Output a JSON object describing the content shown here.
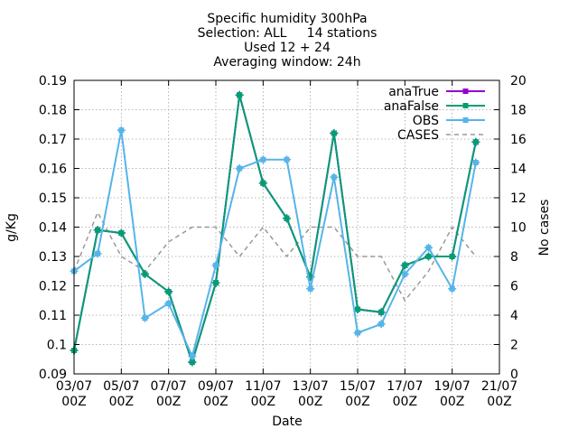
{
  "chart_data": {
    "type": "line",
    "title_lines": [
      "Specific humidity 300hPa",
      "Selection: ALL     14 stations",
      "Used 12 + 24",
      "Averaging window: 24h"
    ],
    "xlabel": "Date",
    "ylabel": "g/Kg",
    "y2label": "No cases",
    "xlim": [
      0,
      18
    ],
    "ylim": [
      0.09,
      0.19
    ],
    "y2lim": [
      0,
      20
    ],
    "grid": true,
    "legend_position": "top-right",
    "x_ticks": [
      {
        "x": 0,
        "line1": "03/07",
        "line2": "00Z"
      },
      {
        "x": 2,
        "line1": "05/07",
        "line2": "00Z"
      },
      {
        "x": 4,
        "line1": "07/07",
        "line2": "00Z"
      },
      {
        "x": 6,
        "line1": "09/07",
        "line2": "00Z"
      },
      {
        "x": 8,
        "line1": "11/07",
        "line2": "00Z"
      },
      {
        "x": 10,
        "line1": "13/07",
        "line2": "00Z"
      },
      {
        "x": 12,
        "line1": "15/07",
        "line2": "00Z"
      },
      {
        "x": 14,
        "line1": "17/07",
        "line2": "00Z"
      },
      {
        "x": 16,
        "line1": "19/07",
        "line2": "00Z"
      },
      {
        "x": 18,
        "line1": "21/07",
        "line2": "00Z"
      }
    ],
    "y_ticks": [
      {
        "value": 0.09,
        "label": "0.09"
      },
      {
        "value": 0.1,
        "label": "0.1"
      },
      {
        "value": 0.11,
        "label": "0.11"
      },
      {
        "value": 0.12,
        "label": "0.12"
      },
      {
        "value": 0.13,
        "label": "0.13"
      },
      {
        "value": 0.14,
        "label": "0.14"
      },
      {
        "value": 0.15,
        "label": "0.15"
      },
      {
        "value": 0.16,
        "label": "0.16"
      },
      {
        "value": 0.17,
        "label": "0.17"
      },
      {
        "value": 0.18,
        "label": "0.18"
      },
      {
        "value": 0.19,
        "label": "0.19"
      }
    ],
    "y2_ticks": [
      {
        "value": 0,
        "label": "0"
      },
      {
        "value": 2,
        "label": "2"
      },
      {
        "value": 4,
        "label": "4"
      },
      {
        "value": 6,
        "label": "6"
      },
      {
        "value": 8,
        "label": "8"
      },
      {
        "value": 10,
        "label": "10"
      },
      {
        "value": 12,
        "label": "12"
      },
      {
        "value": 14,
        "label": "14"
      },
      {
        "value": 16,
        "label": "16"
      },
      {
        "value": 18,
        "label": "18"
      },
      {
        "value": 20,
        "label": "20"
      }
    ],
    "x": [
      0,
      1,
      2,
      3,
      4,
      5,
      6,
      7,
      8,
      9,
      10,
      11,
      12,
      13,
      14,
      15,
      16,
      17
    ],
    "series": [
      {
        "name": "anaTrue",
        "axis": "y",
        "color": "#9400d3",
        "style": "line-points",
        "values": [
          0.098,
          0.139,
          0.138,
          0.124,
          0.118,
          0.094,
          0.121,
          0.185,
          0.155,
          0.143,
          0.123,
          0.172,
          0.112,
          0.111,
          0.127,
          0.13,
          0.13,
          0.169
        ]
      },
      {
        "name": "anaFalse",
        "axis": "y",
        "color": "#009e73",
        "style": "line-points",
        "values": [
          0.098,
          0.139,
          0.138,
          0.124,
          0.118,
          0.094,
          0.121,
          0.185,
          0.155,
          0.143,
          0.123,
          0.172,
          0.112,
          0.111,
          0.127,
          0.13,
          0.13,
          0.169
        ]
      },
      {
        "name": "OBS",
        "axis": "y",
        "color": "#56b4e9",
        "style": "line-points",
        "values": [
          0.125,
          0.131,
          0.173,
          0.109,
          0.114,
          0.096,
          0.127,
          0.16,
          0.163,
          0.163,
          0.119,
          0.157,
          0.104,
          0.107,
          0.124,
          0.133,
          0.119,
          0.162
        ]
      },
      {
        "name": "CASES",
        "axis": "y2",
        "color": "#999999",
        "style": "dashed",
        "values": [
          7,
          11,
          8,
          7,
          9,
          10,
          10,
          8,
          10,
          8,
          10,
          10,
          8,
          8,
          5,
          7,
          10,
          8
        ]
      }
    ]
  }
}
